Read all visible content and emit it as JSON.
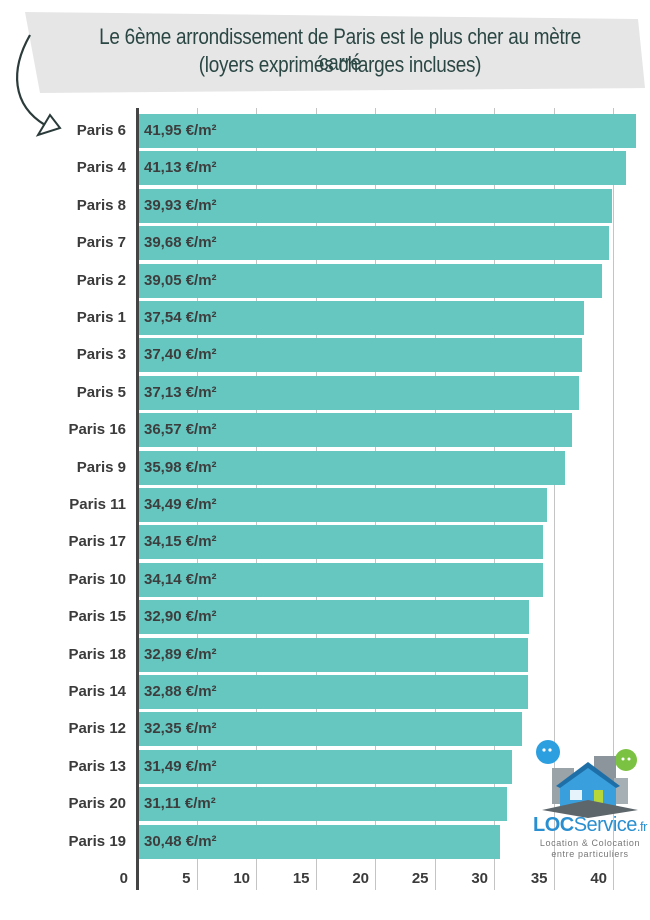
{
  "header": {
    "title_line1": "Le 6ème arrondissement de Paris est le plus cher au mètre carré",
    "title_line2": "(loyers exprimés charges incluses)"
  },
  "logo": {
    "brand_bold": "LOC",
    "brand_rest": "Service",
    "brand_tld": ".fr",
    "tagline1": "Location & Colocation",
    "tagline2": "entre particuliers"
  },
  "colors": {
    "bar": "#66c7c1",
    "banner": "#e6e6e6",
    "title_text": "#2b4744",
    "label_text": "#3b3b3b"
  },
  "chart_data": {
    "type": "bar",
    "orientation": "horizontal",
    "title": "Le 6ème arrondissement de Paris est le plus cher au mètre carré (loyers exprimés charges incluses)",
    "xlabel": "",
    "ylabel": "",
    "unit": "€/m²",
    "xlim": [
      0,
      42
    ],
    "xticks": [
      0,
      5,
      10,
      15,
      20,
      25,
      30,
      35,
      40
    ],
    "grid": true,
    "legend": null,
    "categories": [
      "Paris 6",
      "Paris 4",
      "Paris 8",
      "Paris 7",
      "Paris 2",
      "Paris 1",
      "Paris 3",
      "Paris 5",
      "Paris 16",
      "Paris 9",
      "Paris 11",
      "Paris 17",
      "Paris 10",
      "Paris 15",
      "Paris 18",
      "Paris 14",
      "Paris 12",
      "Paris 13",
      "Paris 20",
      "Paris 19"
    ],
    "values": [
      41.95,
      41.13,
      39.93,
      39.68,
      39.05,
      37.54,
      37.4,
      37.13,
      36.57,
      35.98,
      34.49,
      34.15,
      34.14,
      32.9,
      32.89,
      32.88,
      32.35,
      31.49,
      31.11,
      30.48
    ],
    "value_labels": [
      "41,95 €/m²",
      "41,13 €/m²",
      "39,93 €/m²",
      "39,68 €/m²",
      "39,05 €/m²",
      "37,54 €/m²",
      "37,40 €/m²",
      "37,13 €/m²",
      "36,57 €/m²",
      "35,98 €/m²",
      "34,49 €/m²",
      "34,15 €/m²",
      "34,14 €/m²",
      "32,90 €/m²",
      "32,89 €/m²",
      "32,88 €/m²",
      "32,35 €/m²",
      "31,49 €/m²",
      "31,11 €/m²",
      "30,48 €/m²"
    ]
  }
}
